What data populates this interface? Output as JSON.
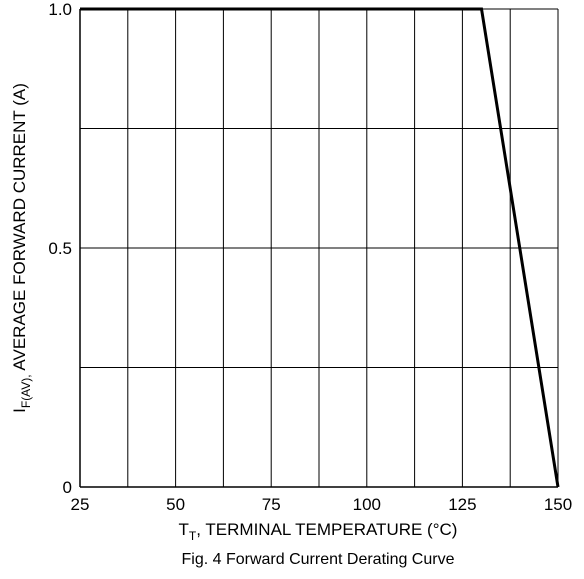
{
  "chart_data": {
    "type": "line",
    "caption": "Fig. 4  Forward Current Derating Curve",
    "xlabel": {
      "prefix": "T",
      "sub": "T",
      "rest": ",  TERMINAL TEMPERATURE (°C)"
    },
    "ylabel": {
      "prefix": "I",
      "sub": "F(AV),",
      "rest": " AVERAGE FORWARD CURRENT (A)"
    },
    "xlim": [
      25,
      150
    ],
    "ylim": [
      0,
      1.0
    ],
    "x_ticks": [
      25,
      50,
      75,
      100,
      125,
      150
    ],
    "x_tick_labels": [
      "25",
      "50",
      "75",
      "100",
      "125",
      "150"
    ],
    "y_ticks": [
      0,
      0.5,
      1.0
    ],
    "y_tick_labels": [
      "0",
      "0.5",
      "1.0"
    ],
    "x_grid": [
      25,
      37.5,
      50,
      62.5,
      75,
      87.5,
      100,
      112.5,
      125,
      137.5,
      150
    ],
    "y_grid": [
      0,
      0.25,
      0.5,
      0.75,
      1.0
    ],
    "grid": true,
    "series": [
      {
        "x": [
          25,
          130,
          150
        ],
        "y": [
          1.0,
          1.0,
          0
        ],
        "color": "#000000"
      }
    ]
  }
}
